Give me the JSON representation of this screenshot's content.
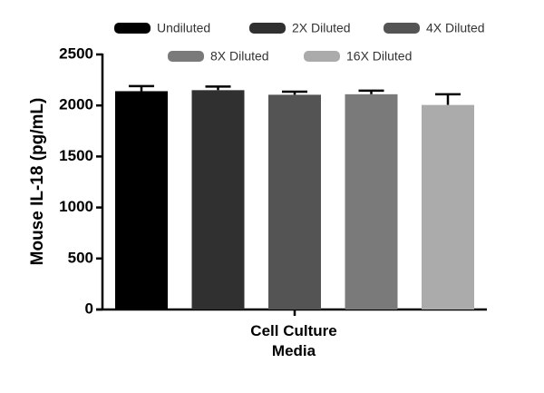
{
  "chart_data": {
    "type": "bar",
    "ylabel": "Mouse IL-18 (pg/mL)",
    "categories": [
      "Cell Culture Media"
    ],
    "series": [
      {
        "name": "Undiluted",
        "color": "#000000",
        "values": [
          2140
        ],
        "errors": [
          50
        ]
      },
      {
        "name": "2X Diluted",
        "color": "#303030",
        "values": [
          2150
        ],
        "errors": [
          35
        ]
      },
      {
        "name": "4X Diluted",
        "color": "#545454",
        "values": [
          2105
        ],
        "errors": [
          30
        ]
      },
      {
        "name": "8X Diluted",
        "color": "#7a7a7a",
        "values": [
          2110
        ],
        "errors": [
          35
        ]
      },
      {
        "name": "16X Diluted",
        "color": "#ababab",
        "values": [
          2005
        ],
        "errors": [
          105
        ]
      }
    ],
    "ylim": [
      0,
      2500
    ],
    "yticks": [
      0,
      500,
      1000,
      1500,
      2000,
      2500
    ],
    "legend": "top"
  }
}
